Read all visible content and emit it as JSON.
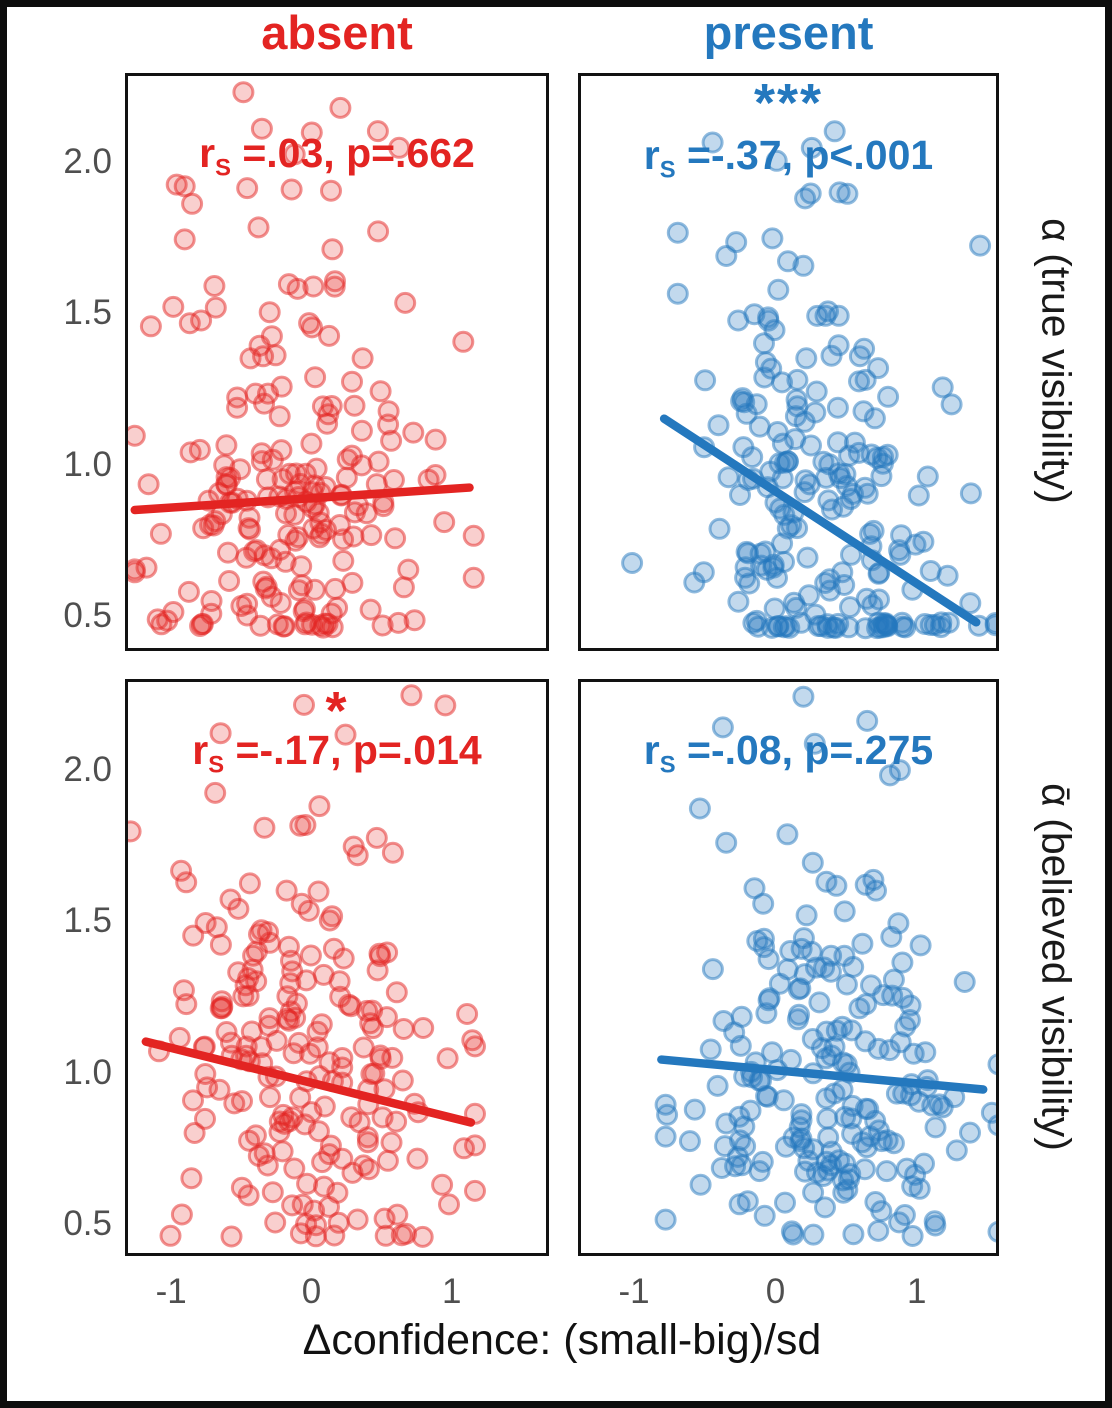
{
  "figure": {
    "title_columns": [
      {
        "label": "absent",
        "color": "#E32422"
      },
      {
        "label": "present",
        "color": "#2478BE"
      }
    ],
    "row_labels": [
      {
        "label": "α (true visibility)"
      },
      {
        "label": "ᾱ (believed visibility)"
      }
    ],
    "x_axis": {
      "label": "Δconfidence: (small-big)/sd",
      "tick_labels": [
        "-1",
        "0",
        "1"
      ],
      "tick_values": [
        -1,
        0,
        1
      ]
    },
    "y_axis": {
      "tick_labels": [
        "2.0",
        "1.5",
        "1.0",
        "0.5"
      ],
      "tick_values": [
        2.0,
        1.5,
        1.0,
        0.5
      ]
    },
    "tick_color": "#4f4f4f",
    "text_color": "#1a1a1a"
  },
  "chart_data": [
    {
      "id": "true-visibility-absent",
      "type": "scatter",
      "row": 0,
      "col": 0,
      "panel": "tl",
      "condition": "absent",
      "measure": "α (true visibility)",
      "color": "#E32422",
      "annotation": {
        "r": "r",
        "sub": "S",
        "rest": " =.03, p=.662",
        "stars": ""
      },
      "spearman_r": 0.03,
      "p_value": "=.662",
      "significance": "",
      "x_range": [
        -1.329,
        1.693
      ],
      "y_range": [
        0.384,
        2.295
      ],
      "trend": [
        [
          -1.28,
          0.845
        ],
        [
          1.14,
          0.92
        ]
      ],
      "n": 205,
      "cloud": {
        "seed": 7,
        "x_mean": -0.08,
        "x_sd": 0.48,
        "x_min": -1.28,
        "x_max": 1.17,
        "intercept": 0.86,
        "slope": 0.03,
        "noise_sd": 0.33,
        "floor": 0.45,
        "ceil": 2.26,
        "high_frac": 0.09,
        "high_min": 1.45,
        "high_max": 2.26
      }
    },
    {
      "id": "true-visibility-present",
      "type": "scatter",
      "row": 0,
      "col": 1,
      "panel": "tr",
      "condition": "present",
      "measure": "α (true visibility)",
      "color": "#2478BE",
      "annotation": {
        "r": "r",
        "sub": "S",
        "rest": " =-.37, p<.001",
        "stars": "***"
      },
      "spearman_r": -0.37,
      "p_value": "<.001",
      "significance": "***",
      "x_range": [
        -1.397,
        1.582
      ],
      "y_range": [
        0.384,
        2.295
      ],
      "trend": [
        [
          -0.8,
          1.15
        ],
        [
          1.44,
          0.47
        ]
      ],
      "n": 205,
      "cloud": {
        "seed": 13,
        "x_mean": 0.3,
        "x_sd": 0.52,
        "x_min": -1.03,
        "x_max": 1.58,
        "intercept": 0.96,
        "slope": -0.28,
        "noise_sd": 0.34,
        "floor": 0.45,
        "ceil": 2.26,
        "high_frac": 0.09,
        "high_min": 1.45,
        "high_max": 2.25
      }
    },
    {
      "id": "believed-visibility-absent",
      "type": "scatter",
      "row": 1,
      "col": 0,
      "panel": "bl",
      "condition": "absent",
      "measure": "ᾱ (believed visibility)",
      "color": "#E32422",
      "annotation": {
        "r": "r",
        "sub": "S",
        "rest": " =-.17, p=.014",
        "stars": "*"
      },
      "spearman_r": -0.17,
      "p_value": "=.014",
      "significance": "*",
      "x_range": [
        -1.329,
        1.693
      ],
      "y_range": [
        0.394,
        2.301
      ],
      "trend": [
        [
          -1.2,
          1.1
        ],
        [
          1.15,
          0.83
        ]
      ],
      "n": 205,
      "cloud": {
        "seed": 23,
        "x_mean": -0.05,
        "x_sd": 0.5,
        "x_min": -1.31,
        "x_max": 1.18,
        "intercept": 0.96,
        "slope": -0.11,
        "noise_sd": 0.34,
        "floor": 0.44,
        "ceil": 2.27,
        "high_frac": 0.08,
        "high_min": 1.45,
        "high_max": 2.27
      }
    },
    {
      "id": "believed-visibility-present",
      "type": "scatter",
      "row": 1,
      "col": 1,
      "panel": "br",
      "condition": "present",
      "measure": "ᾱ (believed visibility)",
      "color": "#2478BE",
      "annotation": {
        "r": "r",
        "sub": "S",
        "rest": " =-.08, p=.275",
        "stars": ""
      },
      "spearman_r": -0.08,
      "p_value": "=.275",
      "significance": "",
      "x_range": [
        -1.397,
        1.582
      ],
      "y_range": [
        0.394,
        2.301
      ],
      "trend": [
        [
          -0.82,
          1.04
        ],
        [
          1.49,
          0.94
        ]
      ],
      "n": 205,
      "cloud": {
        "seed": 31,
        "x_mean": 0.32,
        "x_sd": 0.52,
        "x_min": -0.79,
        "x_max": 1.6,
        "intercept": 0.98,
        "slope": -0.04,
        "noise_sd": 0.33,
        "floor": 0.45,
        "ceil": 2.26,
        "high_frac": 0.08,
        "high_min": 1.45,
        "high_max": 2.26
      }
    }
  ]
}
